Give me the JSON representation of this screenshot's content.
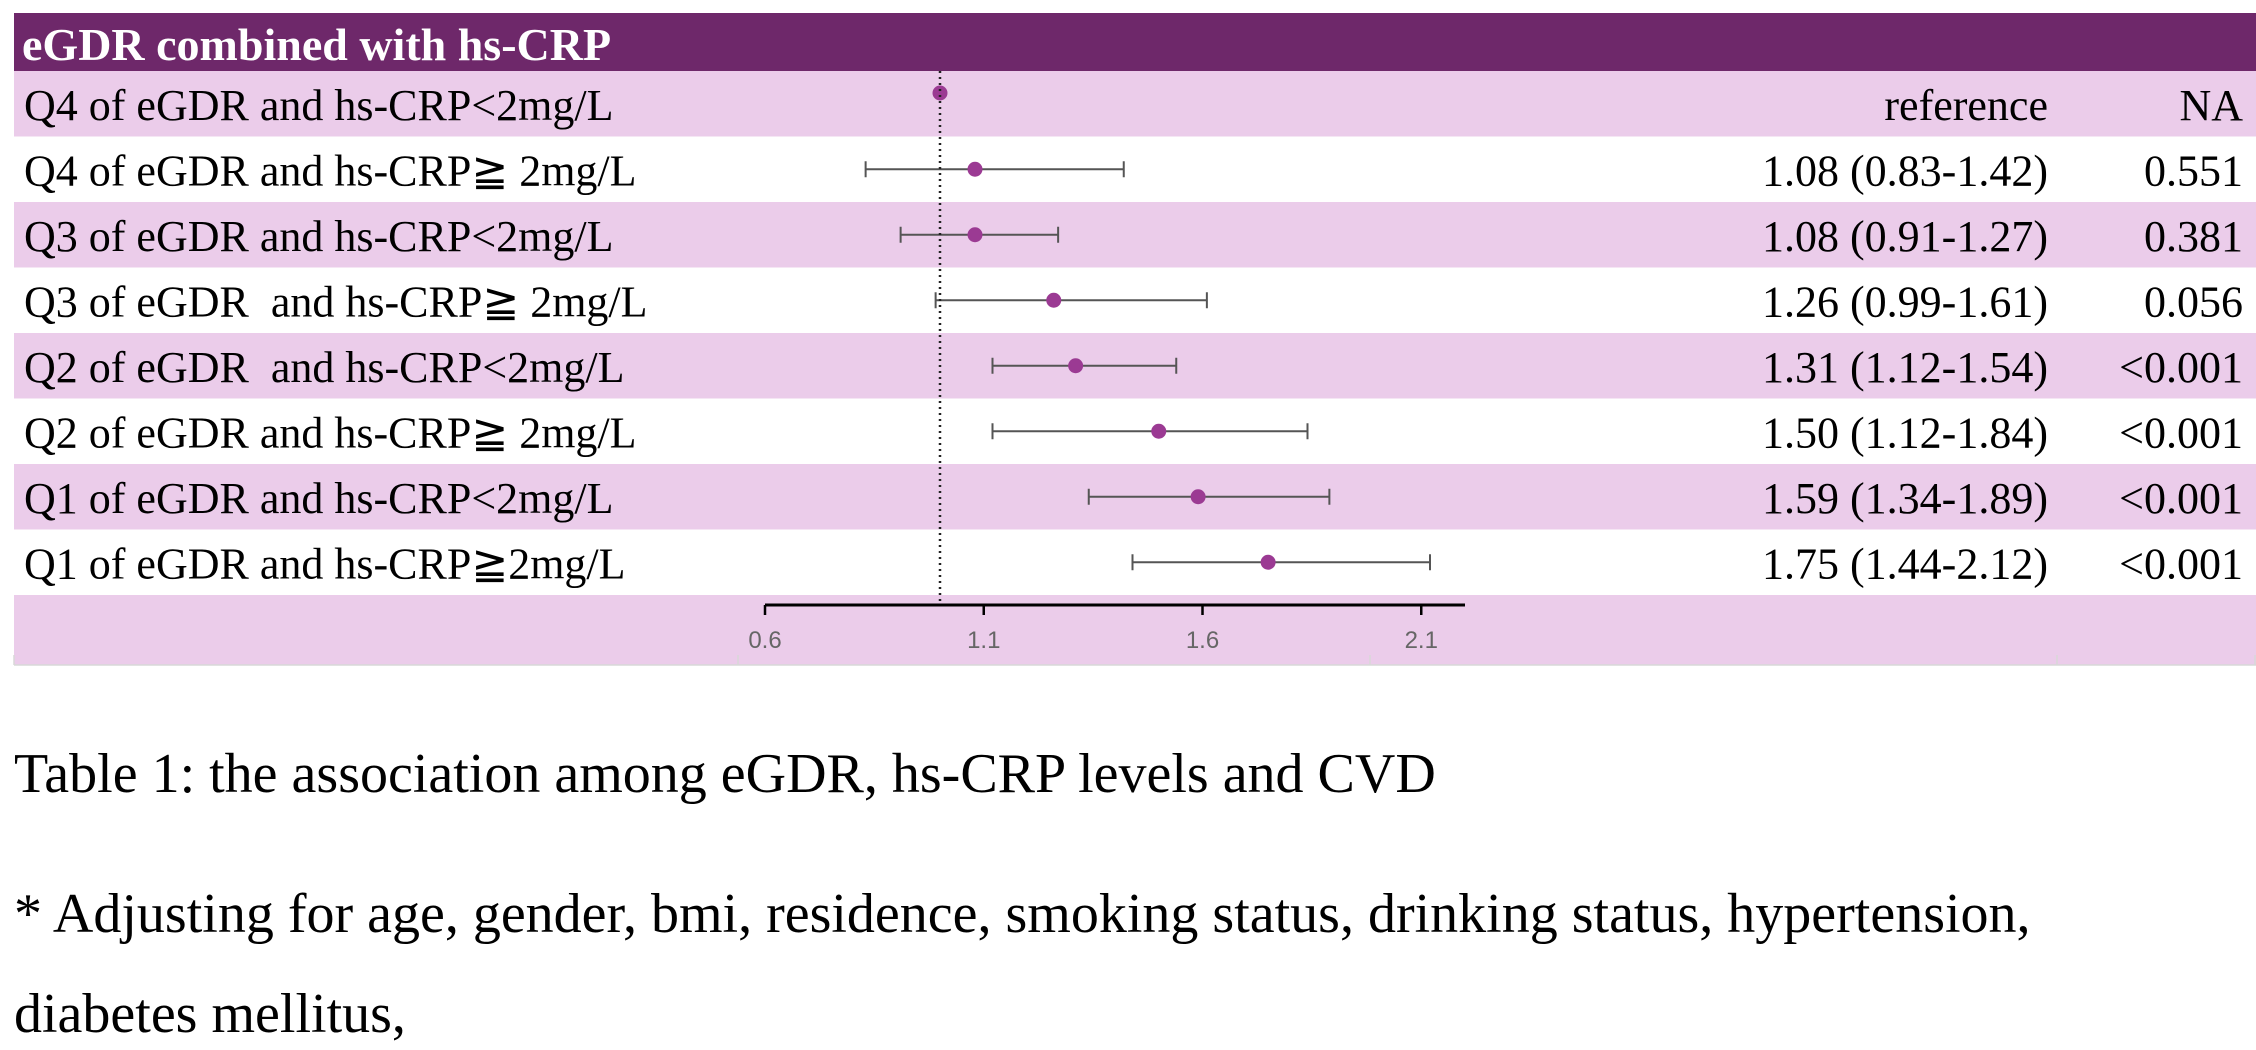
{
  "colors": {
    "header_bg": "#6E286A",
    "band_bg": "#EBCCEA",
    "row_alt_bg": "#FFFFFF",
    "point": "#9B3A93",
    "ci_line": "#555555",
    "axis": "#000000"
  },
  "chart_data": {
    "type": "forest",
    "title": "eGDR combined with hs-CRP",
    "reference_value": 1.0,
    "xlim": [
      0.6,
      2.2
    ],
    "xticks": [
      0.6,
      1.1,
      1.6,
      2.1
    ],
    "xtick_labels": [
      "0.6",
      "1.1",
      "1.6",
      "2.1"
    ],
    "rows": [
      {
        "label": "Q4 of eGDR and hs-CRP<2mg/L",
        "or": 1.0,
        "lower": null,
        "upper": null,
        "or_text": "reference",
        "p": "NA"
      },
      {
        "label": "Q4 of eGDR and hs-CRP≧ 2mg/L",
        "or": 1.08,
        "lower": 0.83,
        "upper": 1.42,
        "or_text": "1.08 (0.83-1.42)",
        "p": "0.551"
      },
      {
        "label": "Q3 of eGDR and hs-CRP<2mg/L",
        "or": 1.08,
        "lower": 0.91,
        "upper": 1.27,
        "or_text": "1.08 (0.91-1.27)",
        "p": "0.381"
      },
      {
        "label": "Q3 of eGDR  and hs-CRP≧ 2mg/L",
        "or": 1.26,
        "lower": 0.99,
        "upper": 1.61,
        "or_text": "1.26 (0.99-1.61)",
        "p": "0.056"
      },
      {
        "label": "Q2 of eGDR  and hs-CRP<2mg/L",
        "or": 1.31,
        "lower": 1.12,
        "upper": 1.54,
        "or_text": "1.31 (1.12-1.54)",
        "p": "<0.001"
      },
      {
        "label": "Q2 of eGDR and hs-CRP≧ 2mg/L",
        "or": 1.5,
        "lower": 1.12,
        "upper": 1.84,
        "or_text": "1.50 (1.12-1.84)",
        "p": "<0.001"
      },
      {
        "label": "Q1 of eGDR and hs-CRP<2mg/L",
        "or": 1.59,
        "lower": 1.34,
        "upper": 1.89,
        "or_text": "1.59 (1.34-1.89)",
        "p": "<0.001"
      },
      {
        "label": "Q1 of eGDR and hs-CRP≧2mg/L",
        "or": 1.75,
        "lower": 1.44,
        "upper": 2.12,
        "or_text": "1.75 (1.44-2.12)",
        "p": "<0.001"
      }
    ]
  },
  "caption": {
    "title": "Table 1: the association among eGDR, hs-CRP levels and CVD",
    "note_line1": "* Adjusting for age, gender, bmi, residence, smoking status, drinking status, hypertension,",
    "note_line2": "diabetes mellitus,"
  }
}
